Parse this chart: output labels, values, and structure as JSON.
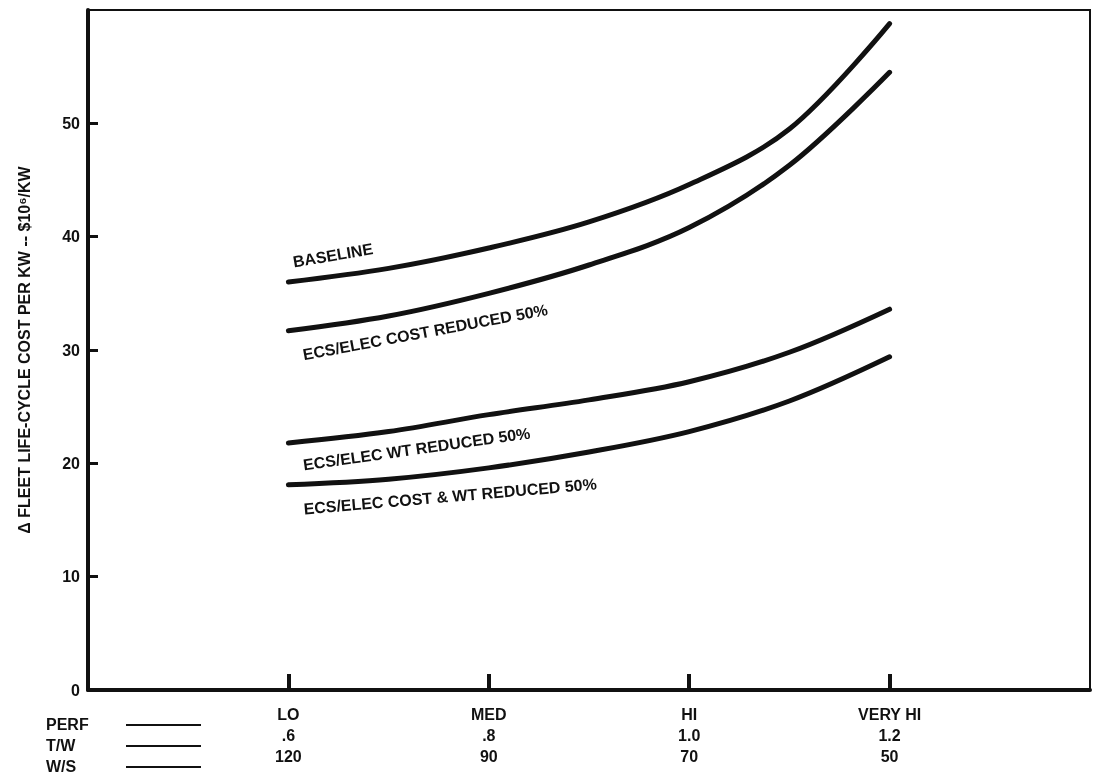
{
  "chart_data": {
    "type": "line",
    "ylabel": "Δ FLEET LIFE-CYCLE COST PER KW -- $10⁶/KW",
    "xlabel": "PERF\nT/W\nW/S",
    "categories": [
      null,
      null,
      "LO\n.6\n120",
      null,
      "MED\n.8\n90",
      null,
      "HI\n1.0\n70",
      null,
      "VERY HI\n1.2\n50",
      null,
      null
    ],
    "series": [
      {
        "name": "BASELINE",
        "color": "#111111",
        "values": [
          null,
          null,
          36.0,
          37.2,
          39.0,
          41.3,
          44.6,
          49.5,
          58.8,
          null,
          null
        ]
      },
      {
        "name": "ECS/ELEC COST REDUCED 50%",
        "color": "#111111",
        "values": [
          null,
          null,
          31.7,
          33.0,
          35.0,
          37.5,
          40.8,
          46.3,
          54.5,
          null,
          null
        ]
      },
      {
        "name": "ECS/ELEC WT REDUCED 50%",
        "color": "#111111",
        "values": [
          null,
          null,
          21.8,
          22.8,
          24.3,
          25.6,
          27.2,
          29.8,
          33.6,
          null,
          null
        ]
      },
      {
        "name": "ECS/ELEC COST & WT REDUCED 50%",
        "color": "#111111",
        "values": [
          null,
          null,
          18.1,
          18.6,
          19.6,
          21.0,
          22.8,
          25.5,
          29.4,
          null,
          null
        ]
      }
    ],
    "ylim": [
      0,
      60
    ],
    "yticks": [
      0,
      10,
      20,
      30,
      40,
      50
    ],
    "legend": false,
    "grid": false,
    "marker": "none",
    "line_style": "solid"
  }
}
